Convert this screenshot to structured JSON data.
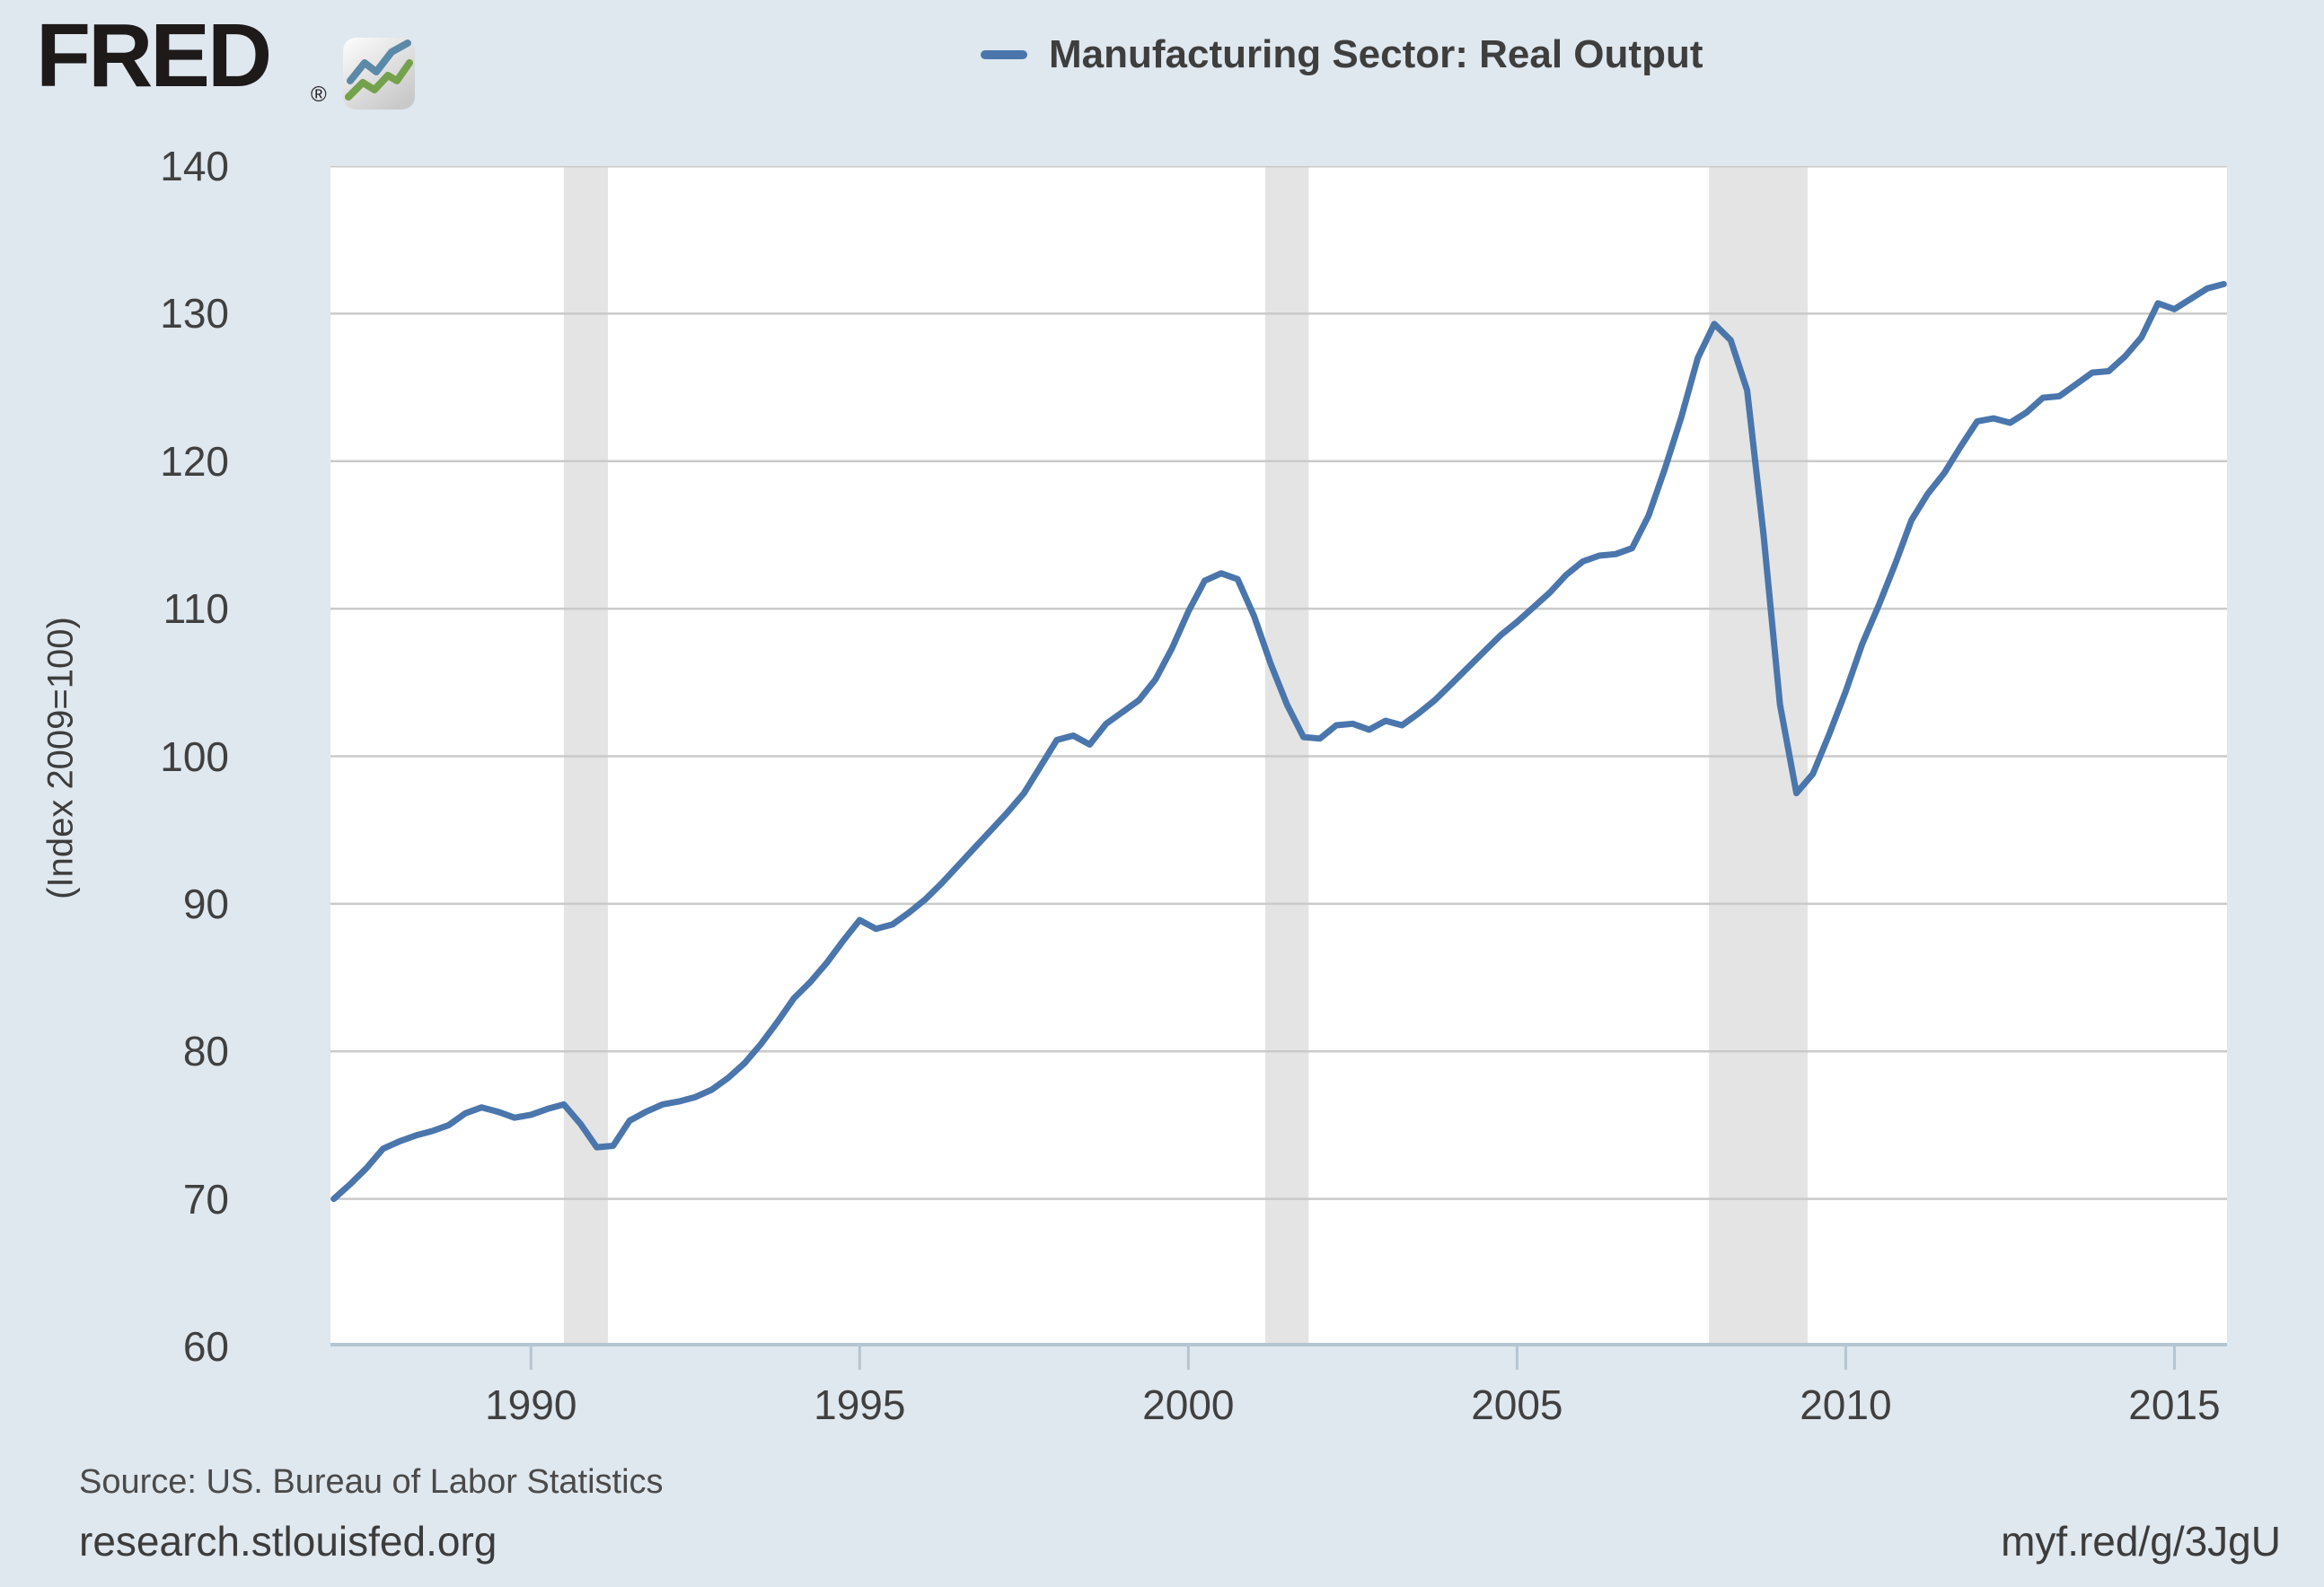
{
  "header": {
    "logo_text": "FRED",
    "registered_mark": "®",
    "logo_icon": "fred-zigzag-chart-icon"
  },
  "legend": {
    "series_label": "Manufacturing Sector: Real Output"
  },
  "chart_data": {
    "type": "line",
    "title": "Manufacturing Sector: Real Output",
    "ylabel": "(Index 2009=100)",
    "xlabel": "",
    "frequency": "quarterly",
    "x_start": 1987.0,
    "x_step": 0.25,
    "xlim": [
      1986.95,
      2015.8
    ],
    "ylim": [
      60,
      140
    ],
    "y_ticks": [
      60,
      70,
      80,
      90,
      100,
      110,
      120,
      130,
      140
    ],
    "x_tick_years": [
      1990,
      1995,
      2000,
      2005,
      2010,
      2015
    ],
    "grid": true,
    "legend_position": "top",
    "recession_bands": [
      [
        1990.5,
        1991.17
      ],
      [
        2001.17,
        2001.83
      ],
      [
        2007.92,
        2009.42
      ]
    ],
    "values": [
      70.0,
      71.0,
      72.1,
      73.4,
      73.9,
      74.3,
      74.6,
      75.0,
      75.8,
      76.2,
      75.9,
      75.5,
      75.7,
      76.1,
      76.4,
      75.1,
      73.5,
      73.6,
      75.3,
      75.9,
      76.4,
      76.6,
      76.9,
      77.4,
      78.2,
      79.2,
      80.5,
      82.0,
      83.6,
      84.7,
      86.0,
      87.5,
      88.9,
      88.3,
      88.6,
      89.4,
      90.3,
      91.4,
      92.6,
      93.8,
      95.0,
      96.2,
      97.5,
      99.3,
      101.1,
      101.4,
      100.8,
      102.2,
      103.0,
      103.8,
      105.2,
      107.3,
      109.8,
      111.9,
      112.4,
      112.0,
      109.5,
      106.3,
      103.5,
      101.3,
      101.2,
      102.1,
      102.2,
      101.8,
      102.4,
      102.1,
      102.9,
      103.8,
      104.9,
      106.0,
      107.1,
      108.2,
      109.1,
      110.1,
      111.1,
      112.3,
      113.2,
      113.6,
      113.7,
      114.1,
      116.3,
      119.5,
      123.0,
      127.0,
      129.3,
      128.2,
      124.8,
      115.0,
      103.5,
      97.5,
      98.8,
      101.5,
      104.4,
      107.6,
      110.2,
      113.0,
      116.0,
      117.8,
      119.2,
      121.0,
      122.7,
      122.9,
      122.6,
      123.3,
      124.3,
      124.4,
      125.2,
      126.0,
      126.1,
      127.1,
      128.4,
      130.7,
      130.3,
      131.0,
      131.7,
      132.0
    ],
    "colors": {
      "line": "#4a76ac",
      "plot_background": "#ffffff",
      "page_background": "#dfe7ef",
      "gridline": "#cacaca",
      "recession_band": "#e4e4e4",
      "axis_line": "#b5c5d2",
      "tick_text": "#404040"
    }
  },
  "footer": {
    "source": "Source: US. Bureau of Labor Statistics",
    "site_url": "research.stlouisfed.org",
    "short_url": "myf.red/g/3JgU"
  }
}
